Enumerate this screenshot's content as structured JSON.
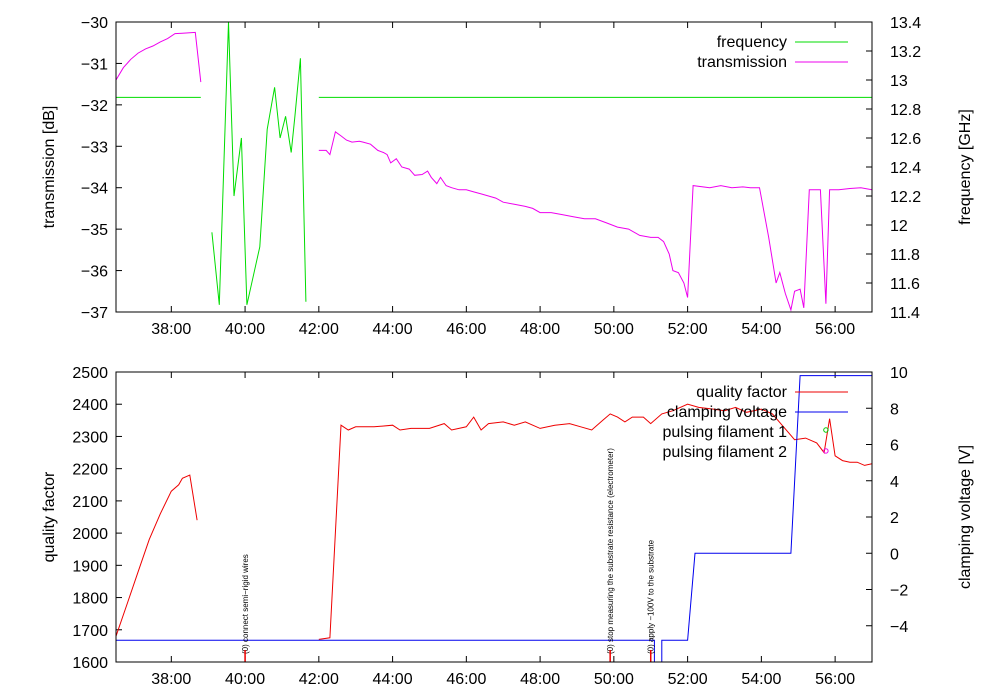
{
  "chart_data": [
    {
      "type": "line",
      "xlabel": "",
      "ylabel": "transmission [dB]",
      "y2label": "frequency [GHz]",
      "xlim": [
        36.5,
        57.0
      ],
      "ylim": [
        -37,
        -30
      ],
      "y2lim": [
        11.4,
        13.4
      ],
      "x_ticks": [
        "38:00",
        "40:00",
        "42:00",
        "44:00",
        "46:00",
        "48:00",
        "50:00",
        "52:00",
        "54:00",
        "56:00"
      ],
      "x_tick_values": [
        38,
        40,
        42,
        44,
        46,
        48,
        50,
        52,
        54,
        56
      ],
      "y_ticks": [
        -37,
        -36,
        -35,
        -34,
        -33,
        -32,
        -31,
        -30
      ],
      "y_tick_labels": [
        "−37",
        "−36",
        "−35",
        "−34",
        "−33",
        "−32",
        "−31",
        "−30"
      ],
      "y2_ticks": [
        11.4,
        11.6,
        11.8,
        12,
        12.2,
        12.4,
        12.6,
        12.8,
        13,
        13.2,
        13.4
      ],
      "y2_tick_labels": [
        "11.4",
        "11.6",
        "11.8",
        "12",
        "12.2",
        "12.4",
        "12.6",
        "12.8",
        "13",
        "13.2",
        "13.4"
      ],
      "legend_position": "top-right",
      "series": [
        {
          "name": "frequency",
          "color": "#00dd00",
          "axis": "y2",
          "segments": [
            [
              [
                36.5,
                12.88
              ],
              [
                38.8,
                12.88
              ]
            ],
            [
              [
                39.1,
                11.95
              ],
              [
                39.3,
                11.45
              ],
              [
                39.55,
                13.4
              ],
              [
                39.7,
                12.2
              ],
              [
                39.9,
                12.6
              ],
              [
                40.05,
                11.45
              ],
              [
                40.4,
                11.85
              ],
              [
                40.6,
                12.66
              ],
              [
                40.8,
                12.95
              ],
              [
                40.95,
                12.6
              ],
              [
                41.1,
                12.75
              ],
              [
                41.25,
                12.5
              ],
              [
                41.35,
                12.75
              ],
              [
                41.5,
                13.15
              ],
              [
                41.65,
                11.47
              ]
            ],
            [
              [
                42.0,
                12.88
              ],
              [
                57.0,
                12.88
              ]
            ]
          ]
        },
        {
          "name": "transmission",
          "color": "#ee00ee",
          "axis": "y",
          "segments": [
            [
              [
                36.5,
                -31.4
              ],
              [
                36.7,
                -31.1
              ],
              [
                36.9,
                -30.9
              ],
              [
                37.1,
                -30.75
              ],
              [
                37.3,
                -30.65
              ],
              [
                37.5,
                -30.58
              ],
              [
                37.7,
                -30.48
              ],
              [
                37.9,
                -30.4
              ],
              [
                38.1,
                -30.28
              ],
              [
                38.3,
                -30.27
              ],
              [
                38.5,
                -30.26
              ],
              [
                38.65,
                -30.25
              ],
              [
                38.8,
                -31.45
              ]
            ],
            [
              [
                42.0,
                -33.1
              ],
              [
                42.2,
                -33.1
              ],
              [
                42.3,
                -33.2
              ],
              [
                42.45,
                -32.65
              ],
              [
                42.6,
                -32.75
              ],
              [
                42.75,
                -32.85
              ],
              [
                42.9,
                -32.9
              ],
              [
                43.1,
                -32.88
              ],
              [
                43.2,
                -32.9
              ],
              [
                43.4,
                -32.95
              ],
              [
                43.6,
                -33.1
              ],
              [
                43.75,
                -33.15
              ],
              [
                43.85,
                -33.2
              ],
              [
                43.95,
                -33.4
              ],
              [
                44.1,
                -33.3
              ],
              [
                44.25,
                -33.5
              ],
              [
                44.45,
                -33.55
              ],
              [
                44.6,
                -33.7
              ],
              [
                44.8,
                -33.68
              ],
              [
                44.95,
                -33.6
              ],
              [
                45.05,
                -33.75
              ],
              [
                45.2,
                -33.9
              ],
              [
                45.3,
                -33.75
              ],
              [
                45.45,
                -33.95
              ],
              [
                45.6,
                -34.0
              ],
              [
                45.8,
                -34.05
              ],
              [
                46.0,
                -34.05
              ],
              [
                46.2,
                -34.1
              ],
              [
                46.4,
                -34.15
              ],
              [
                46.6,
                -34.2
              ],
              [
                46.8,
                -34.25
              ],
              [
                47.0,
                -34.35
              ],
              [
                47.3,
                -34.4
              ],
              [
                47.6,
                -34.45
              ],
              [
                47.8,
                -34.5
              ],
              [
                48.0,
                -34.6
              ],
              [
                48.3,
                -34.6
              ],
              [
                48.6,
                -34.65
              ],
              [
                48.9,
                -34.7
              ],
              [
                49.2,
                -34.75
              ],
              [
                49.5,
                -34.75
              ],
              [
                49.8,
                -34.85
              ],
              [
                50.1,
                -34.95
              ],
              [
                50.4,
                -35.0
              ],
              [
                50.7,
                -35.15
              ],
              [
                51.0,
                -35.2
              ],
              [
                51.2,
                -35.2
              ],
              [
                51.35,
                -35.3
              ],
              [
                51.5,
                -35.6
              ],
              [
                51.6,
                -36.0
              ],
              [
                51.75,
                -36.05
              ],
              [
                51.9,
                -36.3
              ],
              [
                52.0,
                -36.65
              ],
              [
                52.15,
                -33.95
              ],
              [
                52.6,
                -34.0
              ],
              [
                52.9,
                -33.95
              ],
              [
                53.2,
                -34.0
              ],
              [
                53.5,
                -33.98
              ],
              [
                53.7,
                -34.0
              ],
              [
                53.95,
                -34.0
              ],
              [
                54.2,
                -35.2
              ],
              [
                54.4,
                -36.3
              ],
              [
                54.5,
                -36.05
              ],
              [
                54.65,
                -36.55
              ],
              [
                54.8,
                -36.95
              ],
              [
                54.9,
                -36.5
              ],
              [
                55.05,
                -36.45
              ],
              [
                55.15,
                -36.9
              ],
              [
                55.3,
                -34.05
              ],
              [
                55.6,
                -34.05
              ],
              [
                55.75,
                -36.8
              ],
              [
                55.85,
                -34.05
              ],
              [
                56.1,
                -34.05
              ],
              [
                56.4,
                -34.02
              ],
              [
                56.7,
                -34.0
              ],
              [
                57.0,
                -34.05
              ]
            ]
          ]
        }
      ]
    },
    {
      "type": "line",
      "xlabel": "",
      "ylabel": "quality factor",
      "y2label": "clamping voltage [V]",
      "xlim": [
        36.5,
        57.0
      ],
      "ylim": [
        1600,
        2500
      ],
      "y2lim": [
        -6,
        10
      ],
      "x_ticks": [
        "38:00",
        "40:00",
        "42:00",
        "44:00",
        "46:00",
        "48:00",
        "50:00",
        "52:00",
        "54:00",
        "56:00"
      ],
      "x_tick_values": [
        38,
        40,
        42,
        44,
        46,
        48,
        50,
        52,
        54,
        56
      ],
      "y_ticks": [
        1600,
        1700,
        1800,
        1900,
        2000,
        2100,
        2200,
        2300,
        2400,
        2500
      ],
      "y_tick_labels": [
        "1600",
        "1700",
        "1800",
        "1900",
        "2000",
        "2100",
        "2200",
        "2300",
        "2400",
        "2500"
      ],
      "y2_ticks": [
        -4,
        -2,
        0,
        2,
        4,
        6,
        8,
        10
      ],
      "y2_tick_labels": [
        "−4",
        "−2",
        "0",
        "2",
        "4",
        "6",
        "8",
        "10"
      ],
      "legend_position": "top-right",
      "series": [
        {
          "name": "quality factor",
          "color": "#ee0000",
          "axis": "y",
          "segments": [
            [
              [
                36.5,
                1680
              ],
              [
                36.8,
                1780
              ],
              [
                37.1,
                1880
              ],
              [
                37.4,
                1980
              ],
              [
                37.7,
                2060
              ],
              [
                38.0,
                2130
              ],
              [
                38.2,
                2150
              ],
              [
                38.3,
                2170
              ],
              [
                38.5,
                2180
              ],
              [
                38.7,
                2040
              ]
            ],
            [
              [
                42.0,
                1670
              ],
              [
                42.3,
                1675
              ],
              [
                42.6,
                2335
              ],
              [
                42.8,
                2320
              ],
              [
                43.0,
                2330
              ],
              [
                43.5,
                2330
              ],
              [
                44.0,
                2335
              ],
              [
                44.2,
                2320
              ],
              [
                44.5,
                2325
              ],
              [
                45.0,
                2325
              ],
              [
                45.4,
                2340
              ],
              [
                45.6,
                2320
              ],
              [
                46.0,
                2330
              ],
              [
                46.2,
                2360
              ],
              [
                46.4,
                2320
              ],
              [
                46.6,
                2340
              ],
              [
                47.0,
                2345
              ],
              [
                47.3,
                2335
              ],
              [
                47.6,
                2345
              ],
              [
                48.0,
                2325
              ],
              [
                48.4,
                2335
              ],
              [
                48.8,
                2340
              ],
              [
                49.1,
                2330
              ],
              [
                49.4,
                2320
              ],
              [
                49.7,
                2350
              ],
              [
                49.9,
                2370
              ],
              [
                50.1,
                2360
              ],
              [
                50.3,
                2345
              ],
              [
                50.5,
                2360
              ],
              [
                50.8,
                2360
              ],
              [
                51.0,
                2340
              ],
              [
                51.3,
                2370
              ],
              [
                51.6,
                2380
              ],
              [
                52.0,
                2400
              ],
              [
                52.3,
                2390
              ],
              [
                52.7,
                2385
              ],
              [
                53.0,
                2380
              ],
              [
                53.3,
                2390
              ],
              [
                53.6,
                2375
              ],
              [
                54.0,
                2385
              ],
              [
                54.3,
                2370
              ],
              [
                54.6,
                2330
              ],
              [
                54.9,
                2290
              ],
              [
                55.2,
                2295
              ],
              [
                55.5,
                2280
              ],
              [
                55.7,
                2250
              ],
              [
                55.85,
                2355
              ],
              [
                56.0,
                2240
              ],
              [
                56.2,
                2225
              ],
              [
                56.4,
                2220
              ],
              [
                56.6,
                2220
              ],
              [
                56.8,
                2210
              ],
              [
                57.0,
                2215
              ]
            ]
          ]
        },
        {
          "name": "clamping voltage",
          "color": "#0000ee",
          "axis": "y2",
          "segments": [
            [
              [
                36.5,
                -4.8
              ],
              [
                51.1,
                -4.8
              ],
              [
                51.1,
                -6
              ],
              [
                51.3,
                -6
              ],
              [
                51.3,
                -4.8
              ],
              [
                52.0,
                -4.8
              ],
              [
                52.2,
                0
              ],
              [
                54.8,
                0
              ],
              [
                55.05,
                9.8
              ],
              [
                57.0,
                9.8
              ]
            ]
          ]
        },
        {
          "name": "pulsing filament 1",
          "color": "#00cc00",
          "axis": "y",
          "marker": true,
          "points": [
            [
              55.75,
              2320
            ]
          ]
        },
        {
          "name": "pulsing filament 2",
          "color": "#ee00ee",
          "axis": "y",
          "marker": true,
          "points": [
            [
              55.75,
              2255
            ]
          ]
        }
      ],
      "annotations": [
        {
          "x": 40.0,
          "text": "(0) connect semi−rigid wires"
        },
        {
          "x": 49.9,
          "text": "(0) stop measuring the substrate resistance (electrometer)"
        },
        {
          "x": 51.0,
          "text": "(0) apply −100V to the substrate"
        }
      ]
    }
  ]
}
